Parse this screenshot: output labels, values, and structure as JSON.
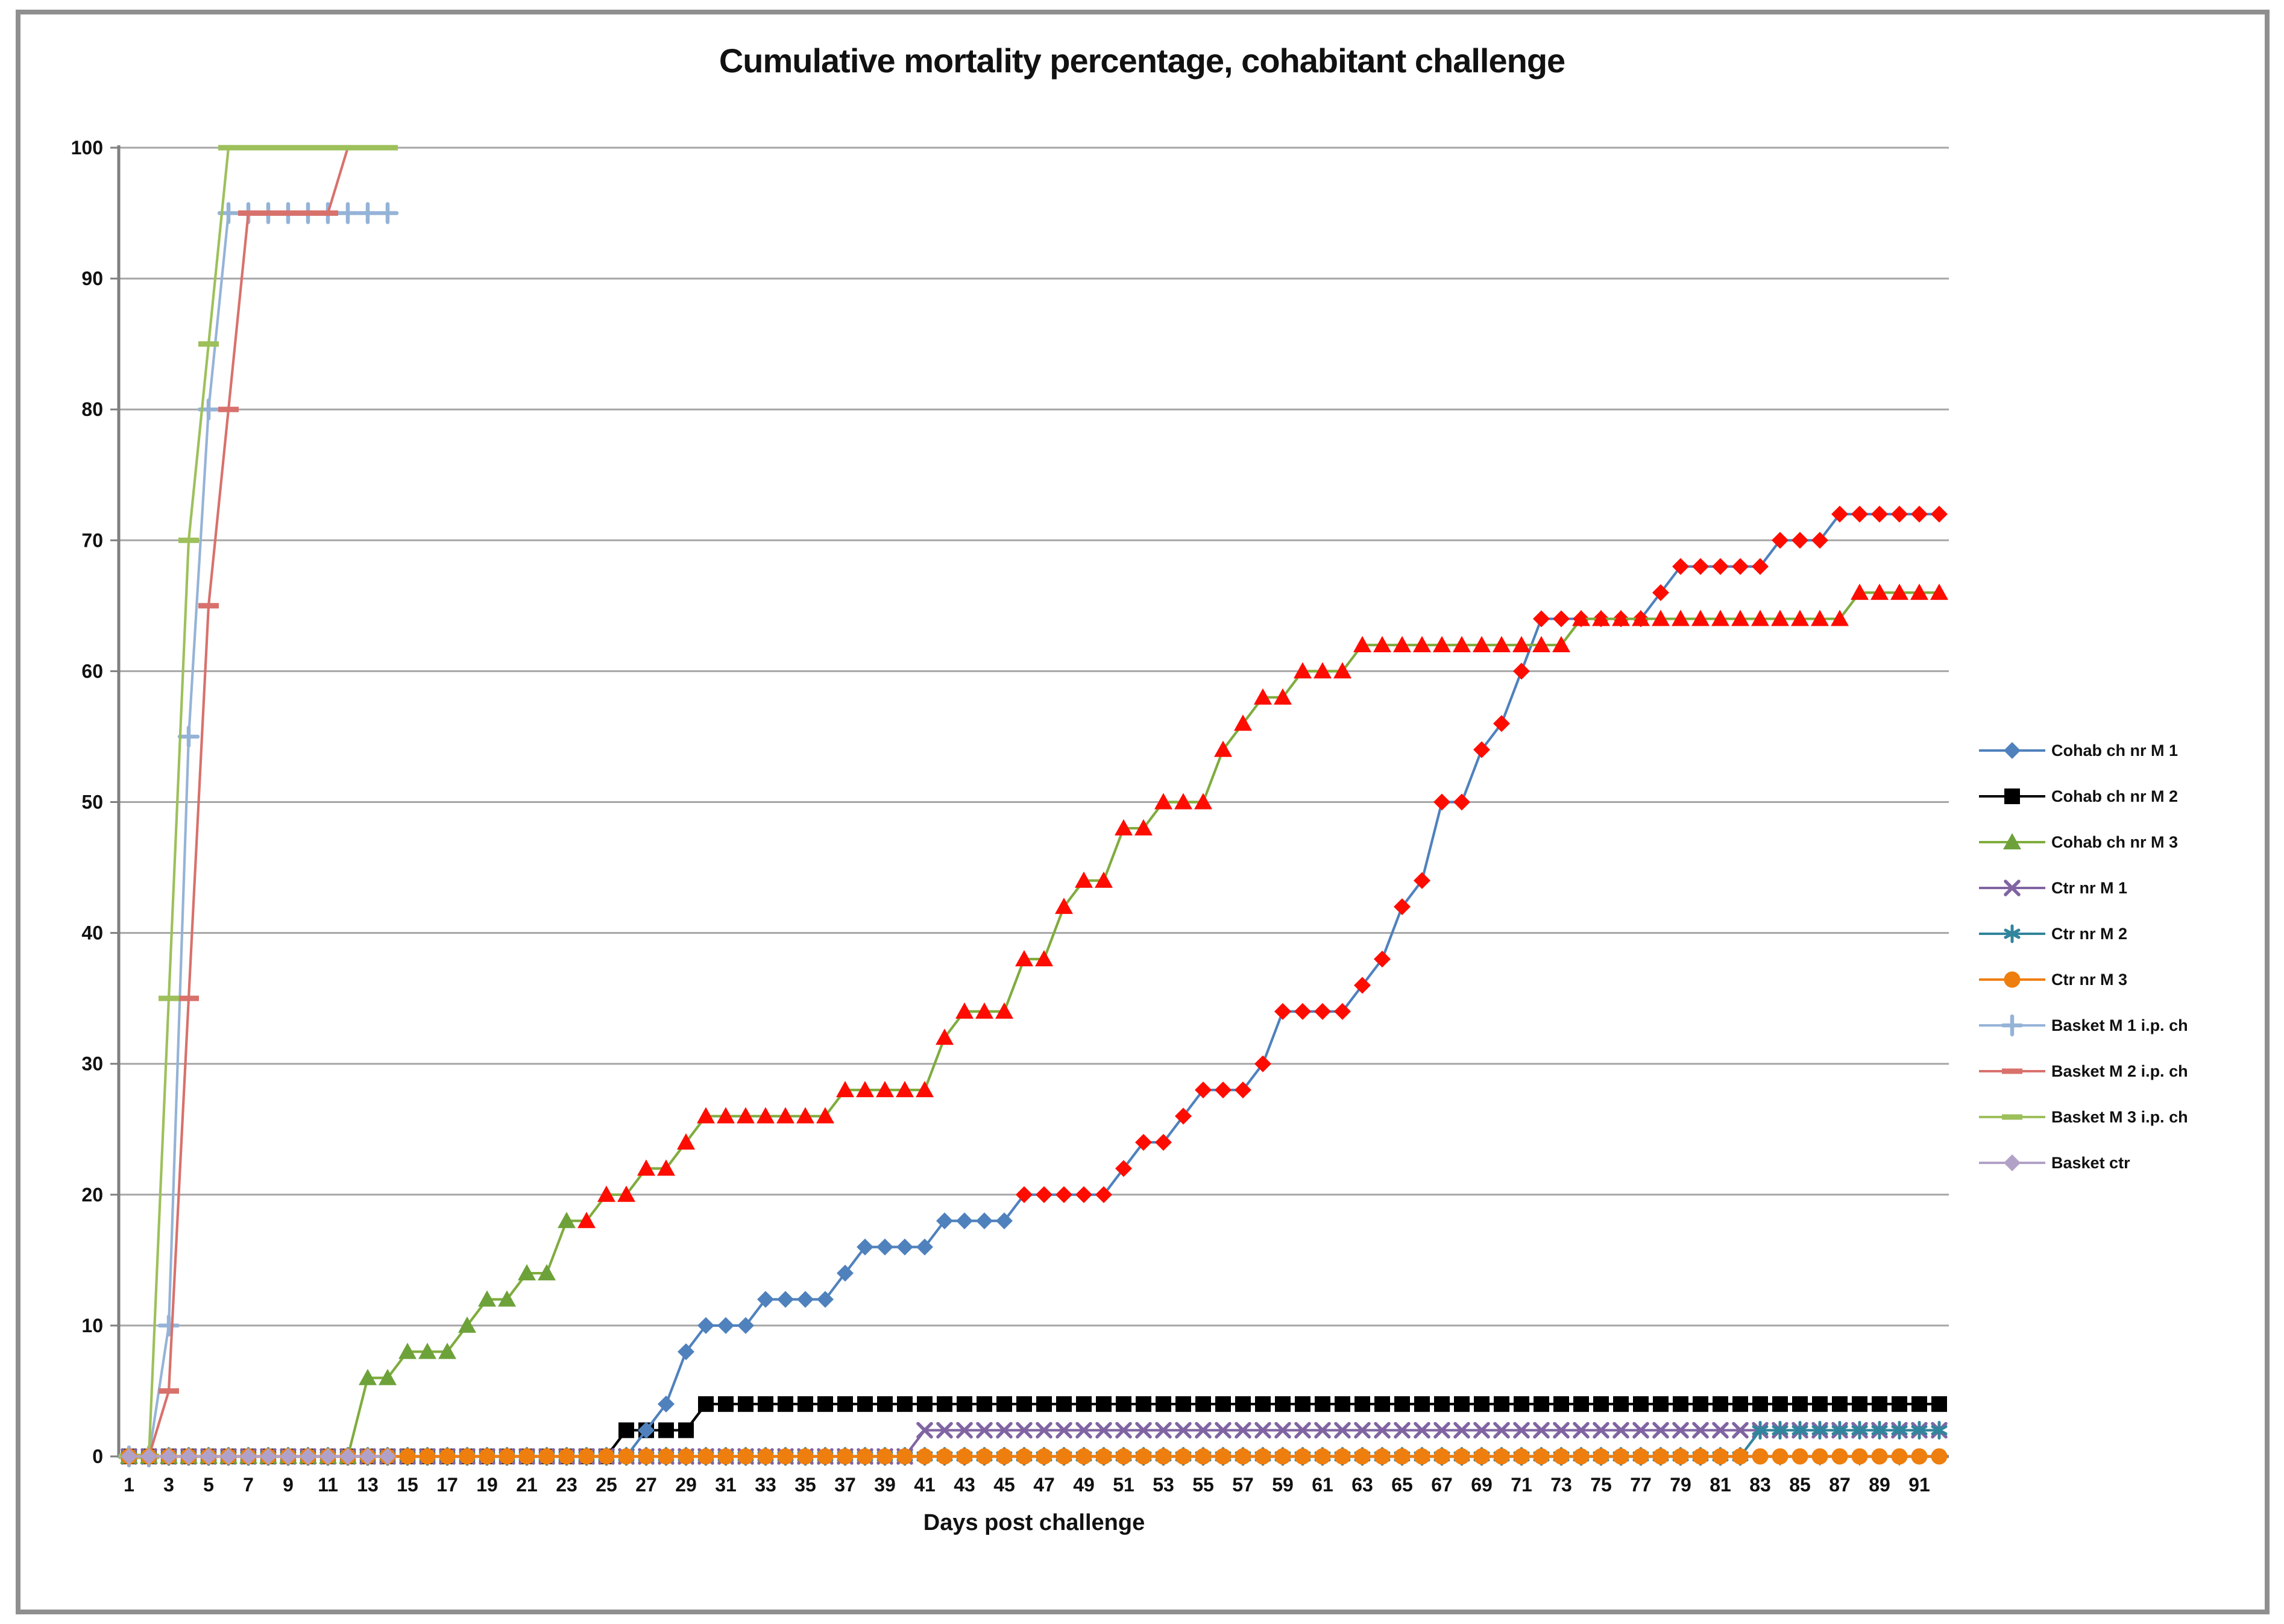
{
  "title": "Cumulative mortality percentage, cohabitant challenge",
  "chart_data": {
    "type": "line",
    "title": "Cumulative mortality percentage, cohabitant challenge",
    "xlabel": "Days post challenge",
    "ylabel": "",
    "x_range": [
      1,
      92
    ],
    "ylim": [
      0,
      100
    ],
    "y_ticks": [
      0,
      10,
      20,
      30,
      40,
      50,
      60,
      70,
      80,
      90,
      100
    ],
    "x_tick_labels": [
      1,
      3,
      5,
      7,
      9,
      11,
      13,
      15,
      17,
      19,
      21,
      23,
      25,
      27,
      29,
      31,
      33,
      35,
      37,
      39,
      41,
      43,
      45,
      47,
      49,
      51,
      53,
      55,
      57,
      59,
      61,
      63,
      65,
      67,
      69,
      71,
      73,
      75,
      77,
      79,
      81,
      83,
      85,
      87,
      89,
      91
    ],
    "grid": "horizontal",
    "legend_position": "right",
    "style": {
      "gridline_color": "#a6a6a6",
      "axis_color": "#7f7f7f",
      "text_color": "#111111",
      "background": "#ffffff",
      "frame_color": "#8f8f8f",
      "late_marker_red": "#ff0c00"
    },
    "series_encoding": "runs = [first_day, last_day, cumulative_mortality_percent]",
    "series": [
      {
        "name": "Cohab ch nr M 1",
        "line_color": "#4F81BD",
        "marker": "diamond",
        "marker_color": "#4F81BD",
        "marker_color_switch": {
          "from_day": 46,
          "color": "#ff0c00"
        },
        "runs": [
          [
            1,
            26,
            0
          ],
          [
            27,
            27,
            2
          ],
          [
            28,
            28,
            4
          ],
          [
            29,
            29,
            8
          ],
          [
            30,
            32,
            10
          ],
          [
            33,
            36,
            12
          ],
          [
            37,
            37,
            14
          ],
          [
            38,
            41,
            16
          ],
          [
            42,
            45,
            18
          ],
          [
            46,
            50,
            20
          ],
          [
            51,
            51,
            22
          ],
          [
            52,
            53,
            24
          ],
          [
            54,
            54,
            26
          ],
          [
            55,
            57,
            28
          ],
          [
            58,
            58,
            30
          ],
          [
            59,
            62,
            34
          ],
          [
            63,
            63,
            36
          ],
          [
            64,
            64,
            38
          ],
          [
            65,
            65,
            42
          ],
          [
            66,
            66,
            44
          ],
          [
            67,
            68,
            50
          ],
          [
            69,
            69,
            54
          ],
          [
            70,
            70,
            56
          ],
          [
            71,
            71,
            60
          ],
          [
            72,
            77,
            64
          ],
          [
            78,
            78,
            66
          ],
          [
            79,
            83,
            68
          ],
          [
            84,
            86,
            70
          ],
          [
            87,
            92,
            72
          ]
        ]
      },
      {
        "name": "Cohab ch nr M 2",
        "line_color": "#000000",
        "marker": "square",
        "marker_color": "#000000",
        "runs": [
          [
            1,
            25,
            0
          ],
          [
            26,
            29,
            2
          ],
          [
            30,
            92,
            4
          ]
        ]
      },
      {
        "name": "Cohab ch nr M 3",
        "line_color": "#7FAC3E",
        "marker": "triangle",
        "marker_color": "#6DA23A",
        "marker_color_switch": {
          "from_day": 24,
          "color": "#ff0c00"
        },
        "runs": [
          [
            1,
            12,
            0
          ],
          [
            13,
            14,
            6
          ],
          [
            15,
            17,
            8
          ],
          [
            18,
            18,
            10
          ],
          [
            19,
            20,
            12
          ],
          [
            21,
            22,
            14
          ],
          [
            23,
            24,
            18
          ],
          [
            25,
            26,
            20
          ],
          [
            27,
            28,
            22
          ],
          [
            29,
            29,
            24
          ],
          [
            30,
            36,
            26
          ],
          [
            37,
            41,
            28
          ],
          [
            42,
            42,
            32
          ],
          [
            43,
            45,
            34
          ],
          [
            46,
            47,
            38
          ],
          [
            48,
            48,
            42
          ],
          [
            49,
            50,
            44
          ],
          [
            51,
            52,
            48
          ],
          [
            53,
            55,
            50
          ],
          [
            56,
            56,
            54
          ],
          [
            57,
            57,
            56
          ],
          [
            58,
            59,
            58
          ],
          [
            60,
            62,
            60
          ],
          [
            63,
            73,
            62
          ],
          [
            74,
            87,
            64
          ],
          [
            88,
            92,
            66
          ]
        ]
      },
      {
        "name": "Ctr nr M 1",
        "line_color": "#8064A2",
        "marker": "x",
        "marker_color": "#8064A2",
        "runs": [
          [
            1,
            40,
            0
          ],
          [
            41,
            92,
            2
          ]
        ]
      },
      {
        "name": "Ctr nr M 2",
        "line_color": "#31859C",
        "marker": "star",
        "marker_color": "#31859C",
        "runs": [
          [
            1,
            82,
            0
          ],
          [
            83,
            92,
            2
          ]
        ]
      },
      {
        "name": "Ctr nr M 3",
        "line_color": "#EE7E0E",
        "marker": "circle",
        "marker_color": "#EE7E0E",
        "runs": [
          [
            1,
            92,
            0
          ]
        ]
      },
      {
        "name": "Basket M 1 i.p. ch",
        "line_color": "#95B3D7",
        "marker": "plus",
        "marker_color": "#95B3D7",
        "runs": [
          [
            1,
            2,
            0
          ],
          [
            3,
            3,
            10
          ],
          [
            4,
            4,
            55
          ],
          [
            5,
            5,
            80
          ],
          [
            6,
            14,
            95
          ]
        ]
      },
      {
        "name": "Basket M 2 i.p. ch",
        "line_color": "#D8716C",
        "marker": "dash",
        "marker_color": "#D8716C",
        "runs": [
          [
            1,
            2,
            0
          ],
          [
            3,
            3,
            5
          ],
          [
            4,
            4,
            35
          ],
          [
            5,
            5,
            65
          ],
          [
            6,
            6,
            80
          ],
          [
            7,
            11,
            95
          ],
          [
            12,
            14,
            100
          ]
        ]
      },
      {
        "name": "Basket M 3 i.p. ch",
        "line_color": "#9DC05B",
        "marker": "dash",
        "marker_color": "#9DC05B",
        "runs": [
          [
            1,
            2,
            0
          ],
          [
            3,
            3,
            35
          ],
          [
            4,
            4,
            70
          ],
          [
            5,
            5,
            85
          ],
          [
            6,
            14,
            100
          ]
        ]
      },
      {
        "name": "Basket ctr",
        "line_color": "#B2A1C7",
        "marker": "diamond",
        "marker_color": "#B2A1C7",
        "runs": [
          [
            1,
            14,
            0
          ]
        ]
      }
    ],
    "draw_order": [
      1,
      3,
      4,
      0,
      2,
      6,
      7,
      8,
      5,
      9
    ]
  }
}
